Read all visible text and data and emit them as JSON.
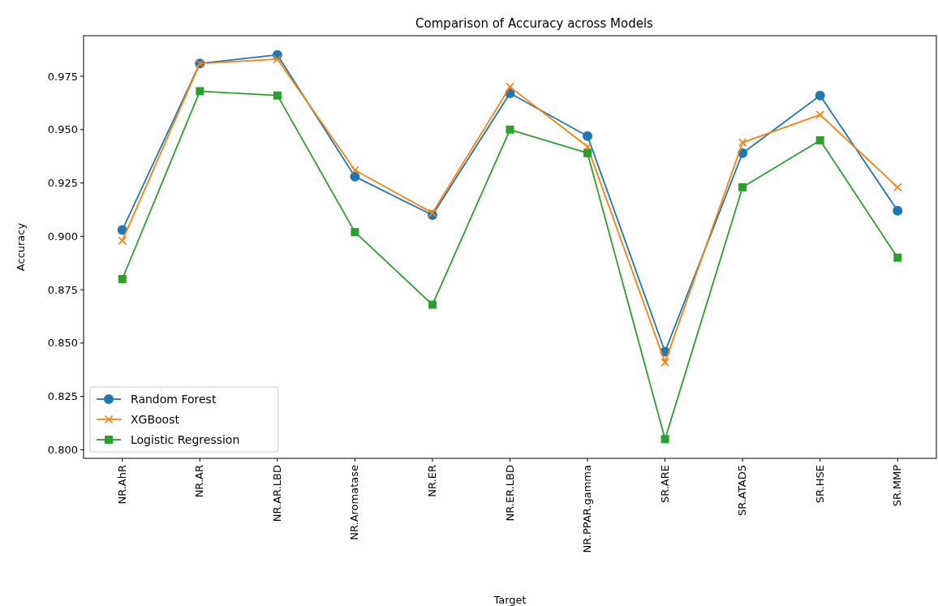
{
  "chart_data": {
    "type": "line",
    "title": "Comparison of Accuracy across Models",
    "xlabel": "Target",
    "ylabel": "Accuracy",
    "categories": [
      "NR.AhR",
      "NR.AR",
      "NR.AR.LBD",
      "NR.Aromatase",
      "NR.ER",
      "NR.ER.LBD",
      "NR.PPAR.gamma",
      "SR.ARE",
      "SR.ATAD5",
      "SR.HSE",
      "SR.MMP"
    ],
    "series": [
      {
        "name": "Random Forest",
        "color": "#1f77b4",
        "marker": "circle",
        "values": [
          0.903,
          0.981,
          0.985,
          0.928,
          0.91,
          0.967,
          0.947,
          0.846,
          0.939,
          0.966,
          0.912
        ]
      },
      {
        "name": "XGBoost",
        "color": "#ff7f0e",
        "marker": "cross",
        "values": [
          0.898,
          0.981,
          0.983,
          0.931,
          0.911,
          0.97,
          0.942,
          0.841,
          0.944,
          0.957,
          0.923
        ]
      },
      {
        "name": "Logistic Regression",
        "color": "#2ca02c",
        "marker": "square",
        "values": [
          0.88,
          0.968,
          0.966,
          0.902,
          0.868,
          0.95,
          0.939,
          0.805,
          0.923,
          0.945,
          0.89
        ]
      }
    ],
    "ylim": [
      0.796,
      0.994
    ],
    "yticks": [
      {
        "value": 0.8,
        "label": "0.800"
      },
      {
        "value": 0.825,
        "label": "0.825"
      },
      {
        "value": 0.85,
        "label": "0.850"
      },
      {
        "value": 0.875,
        "label": "0.875"
      },
      {
        "value": 0.9,
        "label": "0.900"
      },
      {
        "value": 0.925,
        "label": "0.925"
      },
      {
        "value": 0.95,
        "label": "0.950"
      },
      {
        "value": 0.975,
        "label": "0.975"
      }
    ],
    "legend": "bottom left",
    "grid": false
  }
}
